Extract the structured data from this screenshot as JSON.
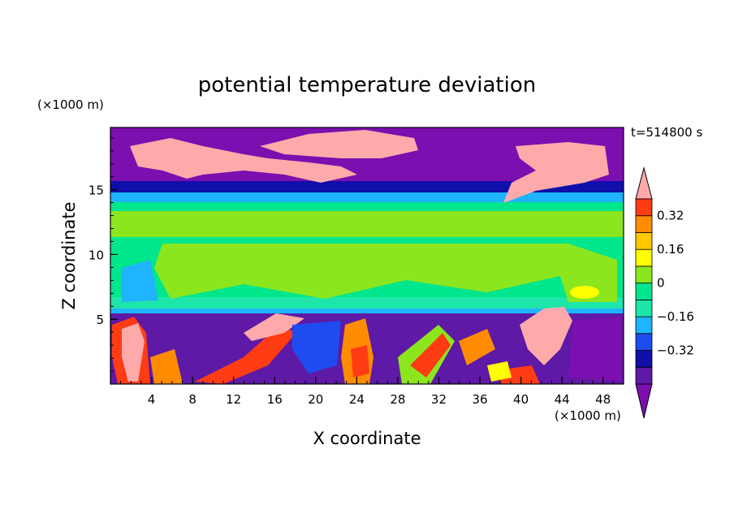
{
  "chart_data": {
    "type": "heatmap",
    "title": "potential temperature deviation",
    "time_label": "t=514800 s",
    "x_axis": {
      "label": "X coordinate",
      "unit_label": "(×1000 m)",
      "range": [
        0,
        50
      ],
      "ticks": [
        4,
        8,
        12,
        16,
        20,
        24,
        28,
        32,
        36,
        40,
        44,
        48
      ]
    },
    "y_axis": {
      "label": "Z coordinate",
      "unit_label": "(×1000 m)",
      "range": [
        0,
        19.8
      ],
      "ticks": [
        5,
        10,
        15
      ]
    },
    "colorbar": {
      "levels": [
        -0.48,
        -0.4,
        -0.32,
        -0.24,
        -0.16,
        -0.08,
        0,
        0.08,
        0.16,
        0.24,
        0.32,
        0.4
      ],
      "labeled_ticks": [
        "0.32",
        "0.16",
        "0",
        "−0.16",
        "−0.32"
      ],
      "labeled_values": [
        0.32,
        0.16,
        0,
        -0.16,
        -0.32
      ],
      "colors_bottom_to_top": [
        "#7b0fb0",
        "#5e19a6",
        "#0f0faa",
        "#1e4cf0",
        "#1eb4ff",
        "#1ee6aa",
        "#00e68c",
        "#8ce61e",
        "#ffff00",
        "#ffc800",
        "#ff8c00",
        "#ff3c14",
        "#ffaaaa"
      ],
      "extends": "both"
    },
    "regions_by_height": [
      {
        "z_range": [
          0,
          5.5
        ],
        "description": "mixed strong positive and negative anomalies"
      },
      {
        "z_range": [
          5.5,
          14.5
        ],
        "description": "near-zero values"
      },
      {
        "z_range": [
          14.5,
          19.8
        ],
        "description": "strong negative with positive patches"
      }
    ]
  }
}
